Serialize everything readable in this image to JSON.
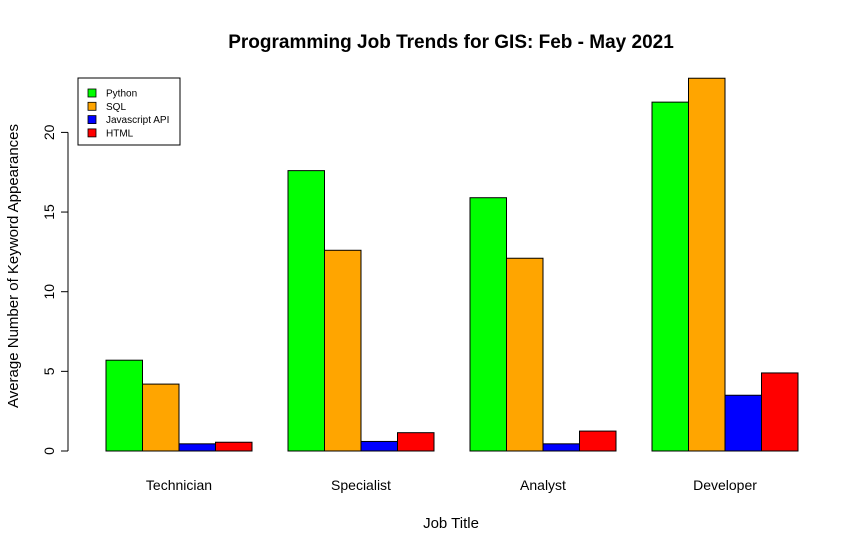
{
  "chart_data": {
    "type": "bar",
    "title": "Programming Job Trends for GIS: Feb - May 2021",
    "xlabel": "Job Title",
    "ylabel": "Average Number of Keyword Appearances",
    "categories": [
      "Technician",
      "Specialist",
      "Analyst",
      "Developer"
    ],
    "series": [
      {
        "name": "Python",
        "color": "#00ff00",
        "values": [
          5.7,
          17.6,
          15.9,
          21.9
        ]
      },
      {
        "name": "SQL",
        "color": "#ffa500",
        "values": [
          4.2,
          12.6,
          12.1,
          23.4
        ]
      },
      {
        "name": "Javascript API",
        "color": "#0000ff",
        "values": [
          0.45,
          0.6,
          0.45,
          3.5
        ]
      },
      {
        "name": "HTML",
        "color": "#ff0000",
        "values": [
          0.55,
          1.15,
          1.25,
          4.9
        ]
      }
    ],
    "yticks": [
      0,
      5,
      10,
      15,
      20
    ],
    "ylim": [
      0,
      23.4
    ],
    "grid": false,
    "legend_position": "top-left"
  }
}
